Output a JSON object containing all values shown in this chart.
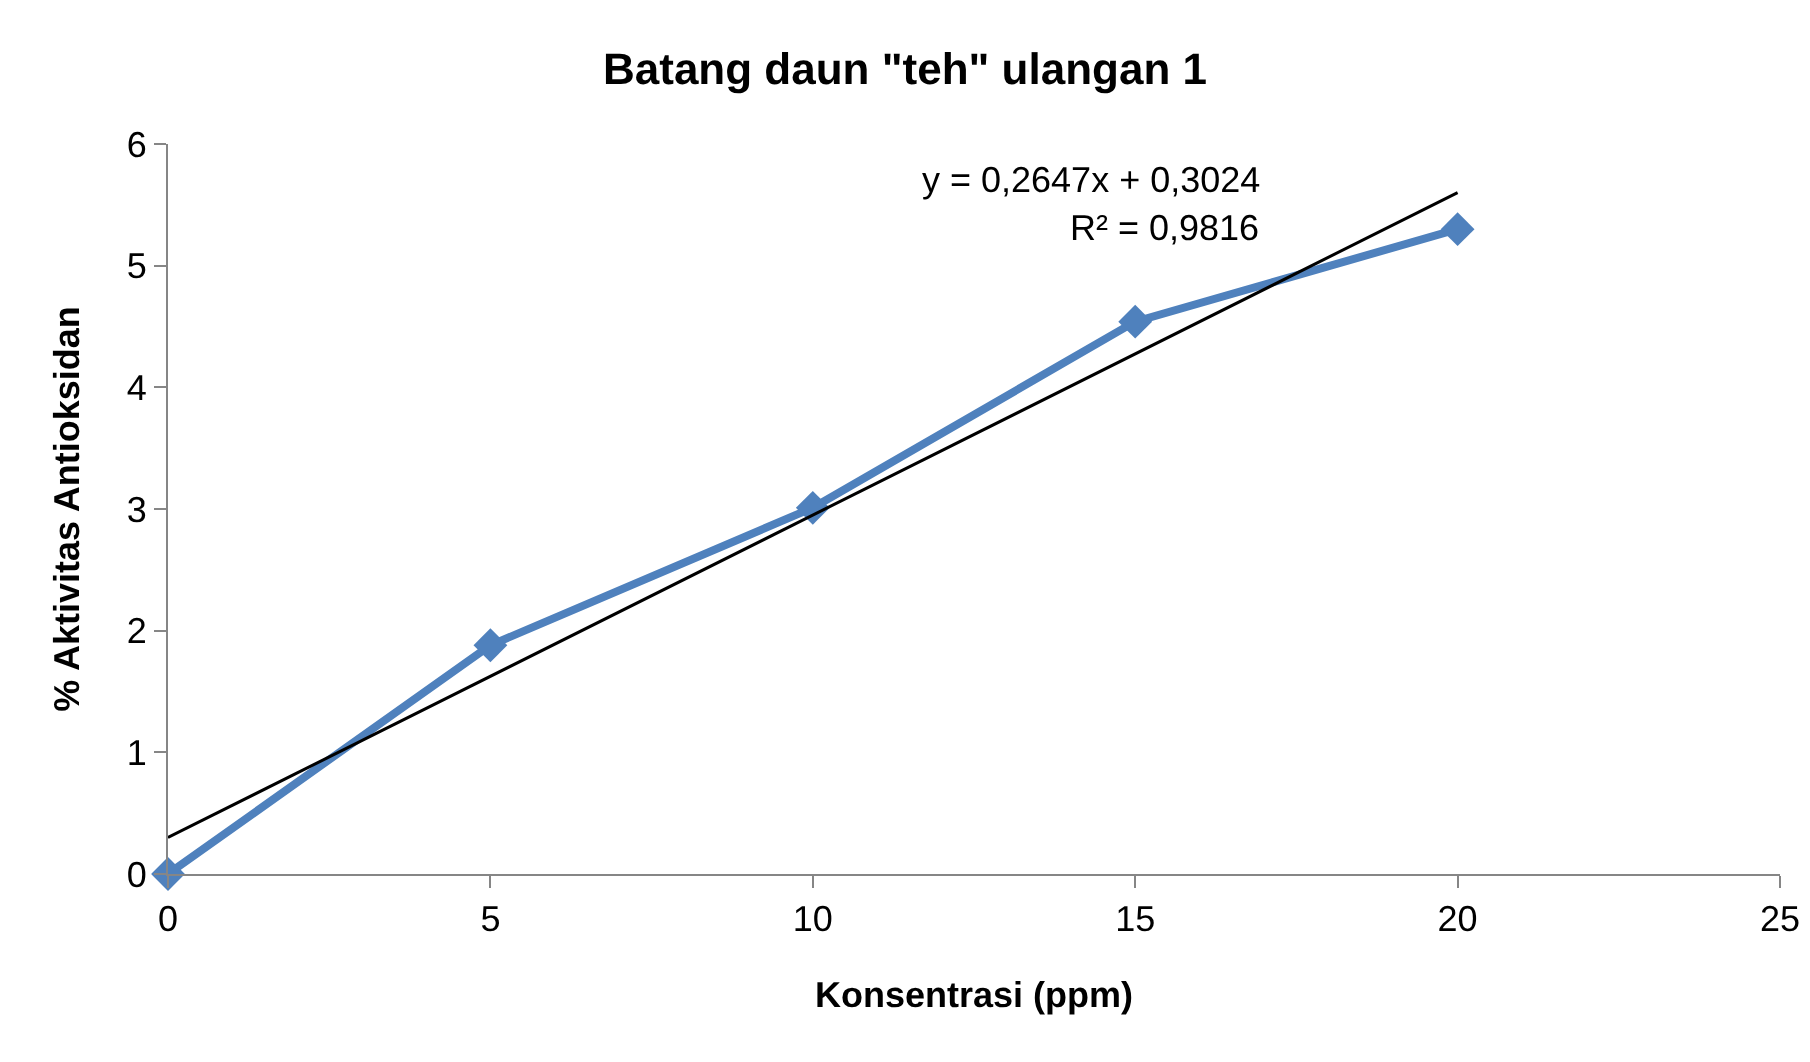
{
  "chart_data": {
    "type": "line",
    "title": "Batang daun \"teh\" ulangan 1",
    "xlabel": "Konsentrasi (ppm)",
    "ylabel": "% Aktivitas Antioksidan",
    "x": [
      0,
      5,
      10,
      15,
      20
    ],
    "series": [
      {
        "color": "#4f81bd",
        "values": [
          0,
          1.88,
          3.01,
          4.54,
          5.3
        ]
      },
      {
        "type": "line",
        "color": "#000000",
        "x": [
          0,
          20
        ],
        "values": [
          0.3,
          5.6
        ],
        "marker": "none"
      }
    ],
    "xlim": [
      0,
      25
    ],
    "xticks": [
      0,
      5,
      10,
      15,
      20,
      25
    ],
    "ylim": [
      0,
      6
    ],
    "yticks": [
      0,
      1,
      2,
      3,
      4,
      5,
      6
    ],
    "annotations": [
      "y = 0,2647x + 0,3024",
      "R² = 0,9816"
    ],
    "grid": false,
    "marker": "diamond",
    "line_style": "solid"
  }
}
